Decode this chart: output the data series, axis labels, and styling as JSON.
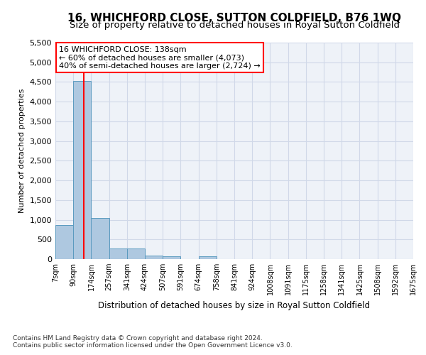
{
  "title": "16, WHICHFORD CLOSE, SUTTON COLDFIELD, B76 1WQ",
  "subtitle": "Size of property relative to detached houses in Royal Sutton Coldfield",
  "xlabel": "Distribution of detached houses by size in Royal Sutton Coldfield",
  "ylabel": "Number of detached properties",
  "footer_line1": "Contains HM Land Registry data © Crown copyright and database right 2024.",
  "footer_line2": "Contains public sector information licensed under the Open Government Licence v3.0.",
  "annotation_line1": "16 WHICHFORD CLOSE: 138sqm",
  "annotation_line2": "← 60% of detached houses are smaller (4,073)",
  "annotation_line3": "40% of semi-detached houses are larger (2,724) →",
  "bar_edges": [
    7,
    90,
    174,
    257,
    341,
    424,
    507,
    591,
    674,
    758,
    841,
    924,
    1008,
    1091,
    1175,
    1258,
    1341,
    1425,
    1508,
    1592,
    1675
  ],
  "bar_heights": [
    870,
    4530,
    1050,
    270,
    270,
    90,
    70,
    0,
    70,
    0,
    0,
    0,
    0,
    0,
    0,
    0,
    0,
    0,
    0,
    0
  ],
  "bar_color": "#aec8e0",
  "bar_edge_color": "#5a9abf",
  "red_line_x": 138,
  "ylim": [
    0,
    5500
  ],
  "yticks": [
    0,
    500,
    1000,
    1500,
    2000,
    2500,
    3000,
    3500,
    4000,
    4500,
    5000,
    5500
  ],
  "grid_color": "#d0d8e8",
  "bg_color": "#eef2f8",
  "title_fontsize": 11,
  "subtitle_fontsize": 9.5,
  "annotation_fontsize": 8,
  "ylabel_fontsize": 8,
  "xlabel_fontsize": 8.5,
  "footer_fontsize": 6.5,
  "ytick_fontsize": 8,
  "xtick_fontsize": 7
}
